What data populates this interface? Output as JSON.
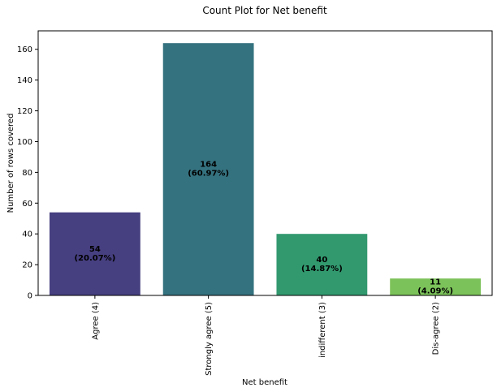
{
  "chart_data": {
    "type": "bar",
    "title": "Count Plot for Net benefit",
    "xlabel": "Net benefit",
    "ylabel": "Number of rows covered",
    "categories": [
      "Agree (4)",
      "Strongly agree (5)",
      "indifferent (3)",
      "Dis-agree (2)"
    ],
    "values": [
      54,
      164,
      40,
      11
    ],
    "bar_labels": [
      [
        "54",
        "(20.07%)"
      ],
      [
        "164",
        "(60.97%)"
      ],
      [
        "40",
        "(14.87%)"
      ],
      [
        "11",
        "(4.09%)"
      ]
    ],
    "colors": [
      "#463f80",
      "#35727f",
      "#32996f",
      "#7cc25a"
    ],
    "ylim": [
      0,
      172
    ],
    "yticks": [
      0,
      20,
      40,
      60,
      80,
      100,
      120,
      140,
      160
    ],
    "grid": false,
    "legend": "none"
  }
}
